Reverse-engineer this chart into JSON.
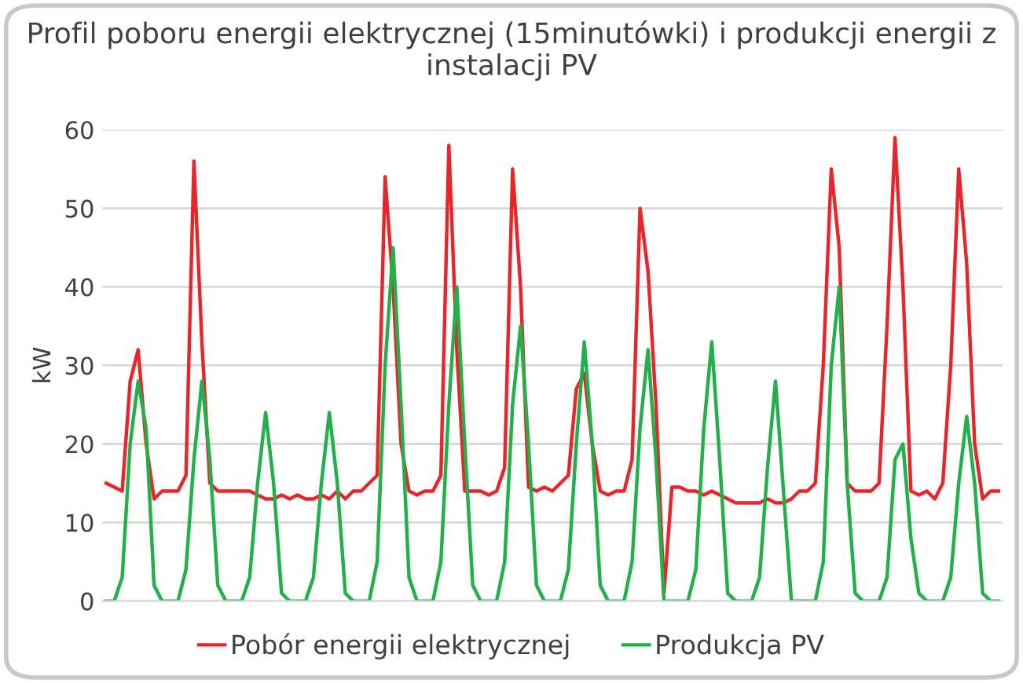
{
  "chart_data": {
    "type": "line",
    "title": "Profil poboru energii elektrycznej (15minutówki) i produkcji energii z instalacji PV",
    "ylabel": "kW",
    "categories": [
      null,
      null,
      null,
      null,
      null,
      null,
      null,
      null,
      null,
      null,
      null,
      null,
      null,
      null,
      null,
      null,
      null,
      null,
      null,
      null,
      null,
      null,
      null,
      null,
      null,
      null,
      null,
      null,
      null,
      null,
      null,
      null,
      null,
      null,
      null,
      null,
      null,
      null,
      null,
      null,
      null,
      null,
      null,
      null,
      null,
      null,
      null,
      null,
      null,
      null,
      null,
      null,
      null,
      null,
      null,
      null,
      null,
      null,
      null,
      null,
      null,
      null,
      null,
      null,
      null,
      null,
      null,
      null,
      null,
      null,
      null,
      null,
      null,
      null,
      null,
      null,
      null,
      null,
      null,
      null,
      null,
      null,
      null,
      null,
      null,
      null,
      null,
      null,
      null,
      null,
      null,
      null,
      null,
      null,
      null,
      null,
      null,
      null,
      null,
      null,
      null,
      null,
      null,
      null,
      null,
      null,
      null,
      null,
      null,
      null,
      null,
      null,
      null
    ],
    "series": [
      {
        "name": "Pobór energii elektrycznej",
        "color": "#e8262a",
        "values": [
          15,
          14.5,
          14,
          28,
          32,
          20,
          13,
          14,
          14,
          14,
          16,
          56,
          33,
          15,
          14,
          14,
          14,
          14,
          14,
          13.5,
          13,
          13,
          13.5,
          13,
          13.5,
          13,
          13,
          13.5,
          13,
          14,
          13,
          14,
          14,
          15,
          16,
          54,
          40,
          20,
          14,
          13.5,
          14,
          14,
          16,
          58,
          32,
          14,
          14,
          14,
          13.5,
          14,
          17,
          55,
          40,
          14.5,
          14,
          14.5,
          14,
          15,
          16,
          27,
          29,
          20,
          14,
          13.5,
          14,
          14,
          18,
          50,
          42,
          25,
          1,
          14.5,
          14.5,
          14,
          14,
          13.5,
          14,
          13.5,
          13,
          12.5,
          12.5,
          12.5,
          12.5,
          13,
          12.5,
          12.5,
          13,
          14,
          14,
          15,
          30,
          55,
          45,
          15,
          14,
          14,
          14,
          15,
          35,
          59,
          40,
          14,
          13.5,
          14,
          13,
          15,
          30,
          55,
          43,
          20,
          13,
          14,
          14
        ]
      },
      {
        "name": "Produkcja PV",
        "color": "#22b04b",
        "values": [
          0,
          0,
          3,
          20,
          28,
          22,
          2,
          0,
          0,
          0,
          4,
          18,
          28,
          18,
          2,
          0,
          0,
          0,
          3,
          15,
          24,
          15,
          1,
          0,
          0,
          0,
          3,
          15,
          24,
          15,
          1,
          0,
          0,
          0,
          5,
          30,
          45,
          25,
          3,
          0,
          0,
          0,
          5,
          25,
          40,
          20,
          2,
          0,
          0,
          0,
          5,
          25,
          35,
          20,
          2,
          0,
          0,
          0,
          4,
          20,
          33,
          20,
          2,
          0,
          0,
          0,
          5,
          22,
          32,
          18,
          0,
          0,
          0,
          0,
          4,
          22,
          33,
          18,
          1,
          0,
          0,
          0,
          3,
          17,
          28,
          14,
          0,
          0,
          0,
          0,
          5,
          30,
          40,
          15,
          1,
          0,
          0,
          0,
          3,
          18,
          20,
          8,
          1,
          0,
          0,
          0,
          3,
          15,
          23.5,
          15,
          1,
          0,
          0
        ]
      }
    ],
    "ylim": [
      0,
      60
    ],
    "yticks": [
      0,
      10,
      20,
      30,
      40,
      50,
      60
    ],
    "grid": "y",
    "legend": "bottom",
    "tick_labels": "y",
    "marker": "none",
    "line_style": "solid"
  }
}
